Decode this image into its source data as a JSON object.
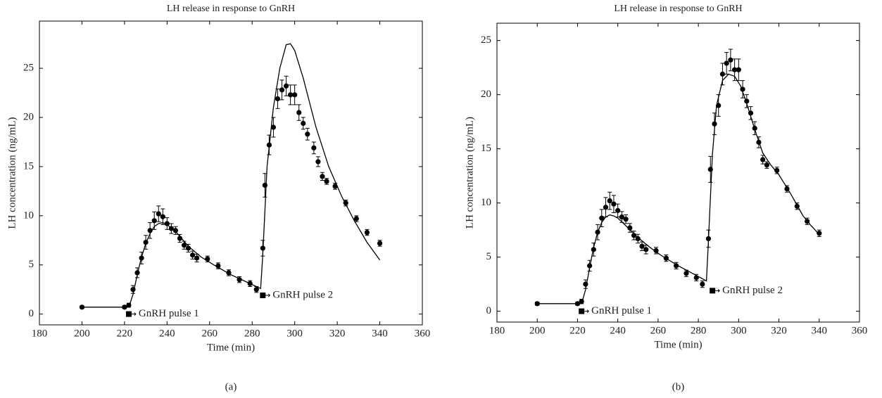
{
  "chart_data": [
    {
      "type": "errorbar-line",
      "title": "LH release in response to GnRH",
      "caption": "(a)",
      "xlabel": "Time (min)",
      "ylabel": "LH concentration (ng/mL)",
      "xlim": [
        180,
        360
      ],
      "ylim": [
        -1.1,
        29.8
      ],
      "xticks": [
        180,
        200,
        220,
        240,
        260,
        280,
        300,
        320,
        340,
        360
      ],
      "yticks": [
        0,
        5,
        10,
        15,
        20,
        25
      ],
      "color": "#000000",
      "data": {
        "x": [
          200,
          220,
          222,
          224,
          226,
          228,
          230,
          232,
          234,
          236,
          238,
          240,
          242,
          244,
          246,
          248,
          250,
          252,
          254,
          259,
          264,
          269,
          274,
          279,
          282,
          285,
          286,
          288,
          290,
          292,
          294,
          296,
          298,
          300,
          302,
          304,
          306,
          309,
          311,
          313,
          315,
          319,
          324,
          329,
          334,
          340
        ],
        "values": [
          0.7,
          0.7,
          0.9,
          2.5,
          4.2,
          5.7,
          7.3,
          8.5,
          9.5,
          10.2,
          9.9,
          9.2,
          8.7,
          8.5,
          7.7,
          7.0,
          6.7,
          6.0,
          5.7,
          5.6,
          4.9,
          4.2,
          3.5,
          3.1,
          2.5,
          6.7,
          13.1,
          17.2,
          19.0,
          21.9,
          22.8,
          23.2,
          22.3,
          22.3,
          20.5,
          19.4,
          18.3,
          16.9,
          15.5,
          14.0,
          13.5,
          13.0,
          11.3,
          9.7,
          8.3,
          7.2
        ],
        "errors": [
          0.15,
          0.15,
          0.2,
          0.4,
          0.5,
          0.6,
          0.7,
          0.8,
          0.9,
          0.8,
          0.8,
          0.6,
          0.5,
          0.4,
          0.4,
          0.4,
          0.4,
          0.4,
          0.4,
          0.3,
          0.3,
          0.3,
          0.3,
          0.3,
          0.3,
          0.8,
          1.2,
          1.0,
          1.0,
          1.0,
          1.0,
          1.0,
          1.0,
          1.0,
          0.8,
          0.6,
          0.6,
          0.6,
          0.5,
          0.4,
          0.3,
          0.3,
          0.3,
          0.3,
          0.3,
          0.3
        ]
      },
      "model": {
        "x": [
          200,
          222,
          224,
          226,
          228,
          230,
          232,
          234,
          236,
          238,
          240,
          244,
          250,
          256,
          262,
          270,
          278,
          284,
          285,
          287,
          290,
          293,
          296,
          298,
          300,
          304,
          310,
          316,
          322,
          328,
          334,
          340
        ],
        "values": [
          0.7,
          0.7,
          2,
          4,
          5.8,
          7.2,
          8.2,
          8.9,
          9.2,
          9.3,
          9.1,
          8.4,
          6.9,
          5.8,
          5,
          4,
          3.2,
          2.6,
          6,
          15,
          21,
          25,
          27.4,
          27.5,
          26.8,
          24,
          19,
          15,
          12,
          9.5,
          7.3,
          5.5
        ]
      },
      "annotations": [
        {
          "text": "GnRH pulse 1",
          "x": 222,
          "y": 0
        },
        {
          "text": "GnRH pulse 2",
          "x": 285,
          "y": 1.9
        }
      ]
    },
    {
      "type": "errorbar-line",
      "title": "LH release in response to GnRH",
      "caption": "(b)",
      "xlabel": "Time (min)",
      "ylabel": "LH concentration (ng/mL)",
      "xlim": [
        180,
        360
      ],
      "ylim": [
        -1,
        26.6
      ],
      "xticks": [
        180,
        200,
        220,
        240,
        260,
        280,
        300,
        320,
        340,
        360
      ],
      "yticks": [
        0,
        5,
        10,
        15,
        20,
        25
      ],
      "color": "#000000",
      "data": {
        "x": [
          200,
          220,
          222,
          224,
          226,
          228,
          230,
          232,
          234,
          236,
          238,
          240,
          242,
          244,
          246,
          248,
          250,
          252,
          254,
          259,
          264,
          269,
          274,
          279,
          282,
          285,
          286,
          288,
          290,
          292,
          294,
          296,
          298,
          300,
          302,
          304,
          306,
          308,
          310,
          312,
          314,
          319,
          324,
          329,
          334,
          340
        ],
        "values": [
          0.7,
          0.7,
          0.9,
          2.5,
          4.2,
          5.7,
          7.3,
          8.6,
          9.6,
          10.2,
          9.9,
          9.3,
          8.7,
          8.5,
          7.7,
          7.0,
          6.7,
          6.0,
          5.7,
          5.6,
          4.9,
          4.2,
          3.5,
          3.1,
          2.5,
          6.7,
          13.1,
          17.3,
          19.0,
          21.9,
          22.9,
          23.2,
          22.3,
          22.3,
          20.5,
          19.4,
          18.3,
          16.9,
          15.6,
          14.0,
          13.5,
          13.0,
          11.3,
          9.7,
          8.3,
          7.2
        ],
        "errors": [
          0.15,
          0.15,
          0.2,
          0.4,
          0.5,
          0.6,
          0.7,
          0.8,
          0.9,
          0.8,
          0.8,
          0.6,
          0.5,
          0.4,
          0.4,
          0.4,
          0.4,
          0.4,
          0.4,
          0.3,
          0.3,
          0.3,
          0.3,
          0.3,
          0.3,
          0.8,
          1.2,
          1.0,
          1.0,
          1.0,
          1.0,
          1.0,
          1.0,
          1.0,
          0.8,
          0.6,
          0.6,
          0.6,
          0.5,
          0.4,
          0.3,
          0.3,
          0.3,
          0.3,
          0.3,
          0.3
        ]
      },
      "model": {
        "x": [
          200,
          222,
          224,
          226,
          228,
          230,
          232,
          234,
          236,
          238,
          240,
          244,
          250,
          256,
          262,
          270,
          278,
          284,
          285,
          287,
          289,
          292,
          295,
          298,
          301,
          304,
          308,
          312,
          316,
          320,
          326,
          332,
          336,
          340
        ],
        "values": [
          0.7,
          0.7,
          2,
          4,
          5.9,
          7.3,
          8.2,
          8.7,
          8.9,
          8.8,
          8.6,
          7.9,
          6.8,
          5.9,
          5.1,
          4.2,
          3.4,
          2.8,
          6.5,
          14.5,
          19,
          21.3,
          21.9,
          21.7,
          20.8,
          19.2,
          16.8,
          14.6,
          13.5,
          12.6,
          10.8,
          8.8,
          7.9,
          7.1
        ]
      },
      "annotations": [
        {
          "text": "GnRH pulse 1",
          "x": 222,
          "y": 0
        },
        {
          "text": "GnRH pulse 2",
          "x": 287,
          "y": 1.9
        }
      ]
    }
  ]
}
